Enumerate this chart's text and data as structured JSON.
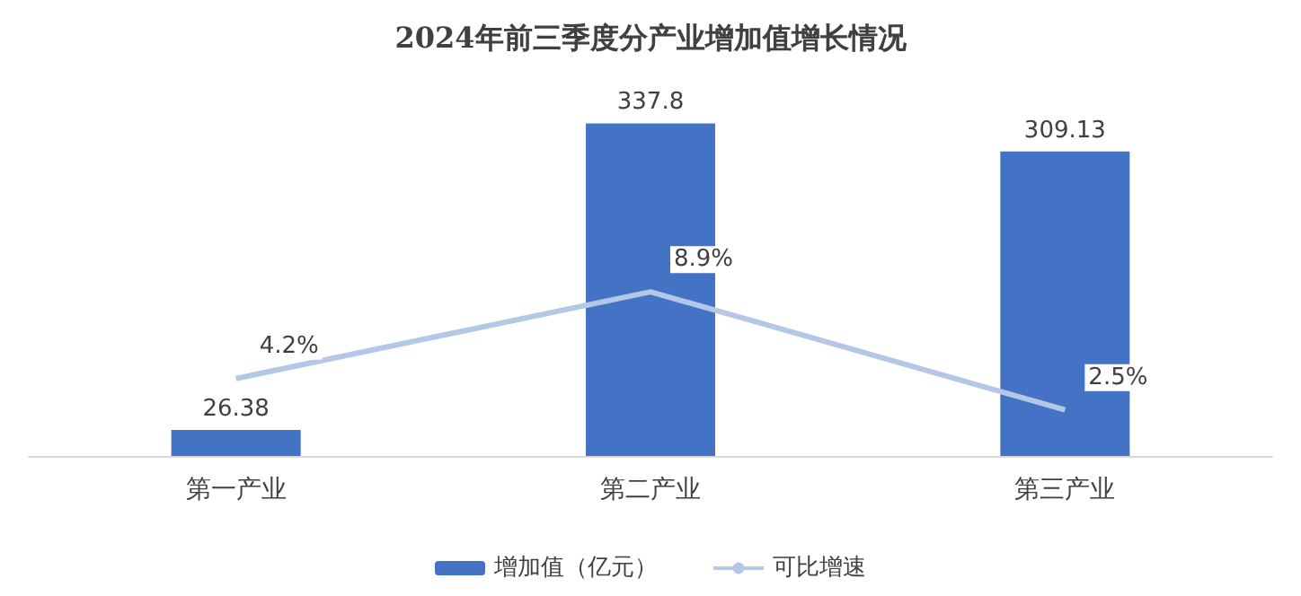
{
  "chart_data": {
    "type": "bar",
    "title": "2024年前三季度分产业增加值增长情况",
    "categories": [
      "第一产业",
      "第二产业",
      "第三产业"
    ],
    "series": [
      {
        "name": "增加值（亿元）",
        "color": "#4472c4",
        "values": [
          26.38,
          337.8,
          309.13
        ],
        "value_labels": [
          "26.38",
          "337.8",
          "309.13"
        ]
      },
      {
        "name": "可比增速",
        "type": "line",
        "axis": "y2",
        "color": "#b4c7e7",
        "values": [
          4.2,
          8.9,
          2.5
        ],
        "value_labels": [
          "4.2%",
          "8.9%",
          "2.5%"
        ],
        "marker": "none"
      }
    ],
    "legend": "bottom",
    "grid": false,
    "tick_labels": "x"
  }
}
